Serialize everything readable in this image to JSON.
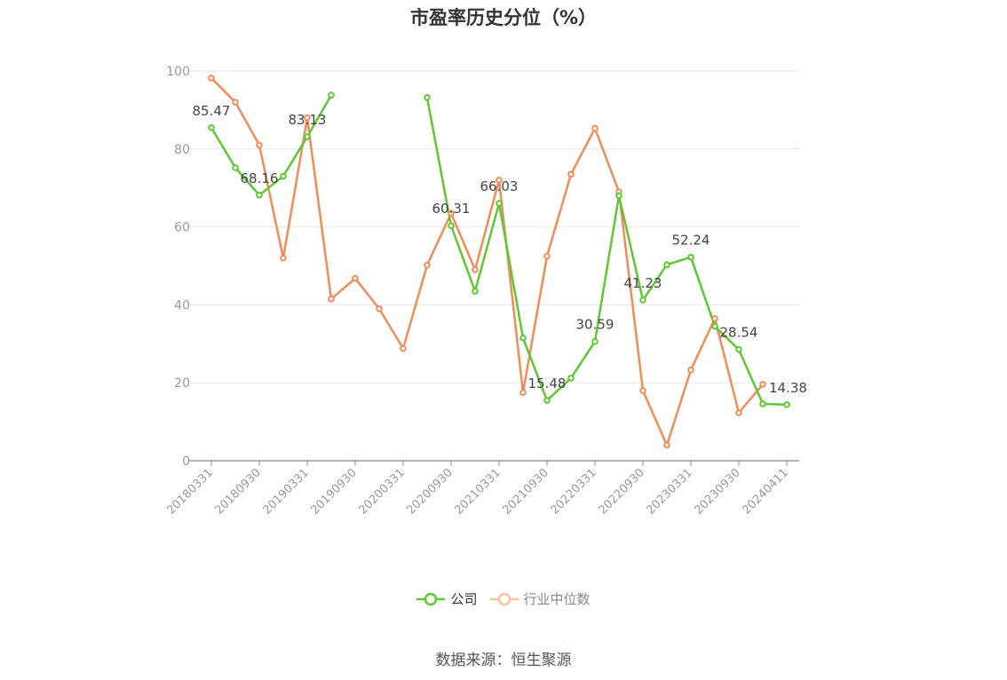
{
  "chart_data": {
    "type": "line",
    "title": "市盈率历史分位（%）",
    "ylim": [
      0,
      100
    ],
    "yticks": [
      0,
      20,
      40,
      60,
      80,
      100
    ],
    "grid": true,
    "legend_position": "bottom",
    "x": [
      "20180331",
      "20180630",
      "20180930",
      "20181231",
      "20190331",
      "20190630",
      "20190930",
      "20191231",
      "20200331",
      "20200630",
      "20200930",
      "20201231",
      "20210331",
      "20210630",
      "20210930",
      "20211231",
      "20220331",
      "20220630",
      "20220930",
      "20221231",
      "20230331",
      "20230630",
      "20230930",
      "20231231",
      "20240411"
    ],
    "xtick_labels": [
      "20180331",
      "20180930",
      "20190331",
      "20190930",
      "20200331",
      "20200930",
      "20210331",
      "20210930",
      "20220331",
      "20220930",
      "20230331",
      "20230930",
      "20240411"
    ],
    "series": [
      {
        "name": "公司",
        "color": "#5ec731",
        "values": [
          85.47,
          75.2,
          68.16,
          73.0,
          83.13,
          93.8,
          null,
          null,
          null,
          93.2,
          60.31,
          43.5,
          66.03,
          31.5,
          15.48,
          21.2,
          30.59,
          68.0,
          41.23,
          50.3,
          52.24,
          34.5,
          28.54,
          14.6,
          14.38
        ],
        "data_labels": [
          {
            "index": 0,
            "text": "85.47"
          },
          {
            "index": 2,
            "text": "68.16"
          },
          {
            "index": 4,
            "text": "83.13"
          },
          {
            "index": 10,
            "text": "60.31"
          },
          {
            "index": 12,
            "text": "66.03"
          },
          {
            "index": 14,
            "text": "15.48"
          },
          {
            "index": 16,
            "text": "30.59"
          },
          {
            "index": 18,
            "text": "41.23"
          },
          {
            "index": 20,
            "text": "52.24"
          },
          {
            "index": 22,
            "text": "28.54"
          },
          {
            "index": 24,
            "text": "14.38"
          }
        ]
      },
      {
        "name": "行业中位数",
        "color": "#f08c5a",
        "values": [
          98.2,
          92.0,
          81.0,
          52.0,
          88.0,
          41.5,
          46.8,
          39.0,
          28.8,
          50.2,
          63.5,
          49.0,
          72.0,
          17.5,
          52.5,
          73.5,
          85.3,
          69.0,
          18.0,
          4.0,
          23.3,
          36.5,
          12.3,
          19.6,
          null
        ]
      }
    ]
  },
  "legend": {
    "company": "公司",
    "industry": "行业中位数"
  },
  "source": "数据来源：恒生聚源"
}
